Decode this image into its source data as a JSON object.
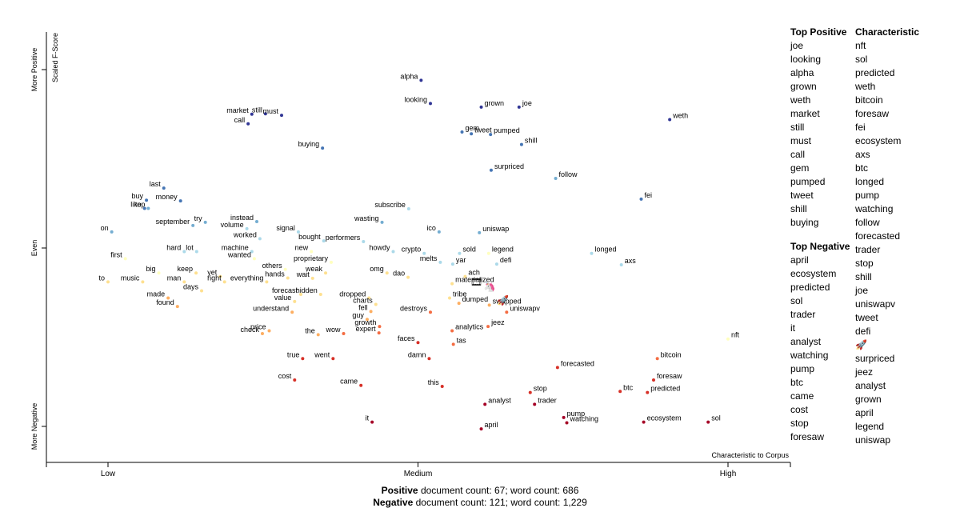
{
  "chart_data": {
    "type": "scatter",
    "y_axis_title": "Scaled F-Score",
    "y_tick_labels": [
      "More Positive",
      "Even",
      "More Negative"
    ],
    "x_axis_title": "Characteristic to Corpus",
    "x_tick_labels": [
      "Low",
      "Medium",
      "High"
    ],
    "xlim": [
      0,
      1
    ],
    "ylim": [
      0,
      1
    ],
    "color_scale": {
      "positive": "#313695",
      "mid_positive": "#74add1",
      "neutral_positive": "#abd9e9",
      "neutral": "#ffffbf",
      "neutral_negative": "#fdae61",
      "negative": "#d73027",
      "most_negative": "#a50026"
    },
    "points": [
      {
        "term": "alpha",
        "x": 0.505,
        "y": 0.97,
        "c": "#313695"
      },
      {
        "term": "looking",
        "x": 0.52,
        "y": 0.905,
        "c": "#313695"
      },
      {
        "term": "grown",
        "x": 0.602,
        "y": 0.895,
        "c": "#313695"
      },
      {
        "term": "joe",
        "x": 0.663,
        "y": 0.895,
        "c": "#313695"
      },
      {
        "term": "market",
        "x": 0.232,
        "y": 0.875,
        "c": "#313695"
      },
      {
        "term": "still",
        "x": 0.254,
        "y": 0.876,
        "c": "#313695"
      },
      {
        "term": "must",
        "x": 0.28,
        "y": 0.872,
        "c": "#313695"
      },
      {
        "term": "call",
        "x": 0.226,
        "y": 0.848,
        "c": "#313695"
      },
      {
        "term": "weth",
        "x": 0.906,
        "y": 0.86,
        "c": "#313695"
      },
      {
        "term": "gem",
        "x": 0.571,
        "y": 0.825,
        "c": "#4575b4"
      },
      {
        "term": "tweet",
        "x": 0.586,
        "y": 0.82,
        "c": "#4575b4"
      },
      {
        "term": "pumped",
        "x": 0.617,
        "y": 0.818,
        "c": "#4575b4"
      },
      {
        "term": "shill",
        "x": 0.667,
        "y": 0.79,
        "c": "#4575b4"
      },
      {
        "term": "buying",
        "x": 0.346,
        "y": 0.78,
        "c": "#4575b4"
      },
      {
        "term": "surpriced",
        "x": 0.618,
        "y": 0.718,
        "c": "#4575b4"
      },
      {
        "term": "follow",
        "x": 0.722,
        "y": 0.695,
        "c": "#74add1"
      },
      {
        "term": "last",
        "x": 0.09,
        "y": 0.668,
        "c": "#4575b4"
      },
      {
        "term": "money",
        "x": 0.117,
        "y": 0.632,
        "c": "#4575b4"
      },
      {
        "term": "buy",
        "x": 0.062,
        "y": 0.634,
        "c": "#4575b4"
      },
      {
        "term": "like",
        "x": 0.059,
        "y": 0.611,
        "c": "#4575b4"
      },
      {
        "term": "top",
        "x": 0.065,
        "y": 0.611,
        "c": "#74add1"
      },
      {
        "term": "fei",
        "x": 0.86,
        "y": 0.637,
        "c": "#4575b4"
      },
      {
        "term": "subscribe",
        "x": 0.485,
        "y": 0.61,
        "c": "#abd9e9"
      },
      {
        "term": "try",
        "x": 0.157,
        "y": 0.572,
        "c": "#74add1"
      },
      {
        "term": "instead",
        "x": 0.24,
        "y": 0.574,
        "c": "#74add1"
      },
      {
        "term": "wasting",
        "x": 0.442,
        "y": 0.572,
        "c": "#74add1"
      },
      {
        "term": "on",
        "x": 0.006,
        "y": 0.545,
        "c": "#74add1"
      },
      {
        "term": "september",
        "x": 0.137,
        "y": 0.563,
        "c": "#74add1"
      },
      {
        "term": "volume",
        "x": 0.224,
        "y": 0.554,
        "c": "#abd9e9"
      },
      {
        "term": "signal",
        "x": 0.307,
        "y": 0.545,
        "c": "#abd9e9"
      },
      {
        "term": "ico",
        "x": 0.534,
        "y": 0.545,
        "c": "#74add1"
      },
      {
        "term": "uniswap",
        "x": 0.599,
        "y": 0.543,
        "c": "#74add1"
      },
      {
        "term": "worked",
        "x": 0.245,
        "y": 0.526,
        "c": "#abd9e9"
      },
      {
        "term": "bought",
        "x": 0.348,
        "y": 0.52,
        "c": "#abd9e9"
      },
      {
        "term": "performers",
        "x": 0.412,
        "y": 0.518,
        "c": "#abd9e9"
      },
      {
        "term": "hard",
        "x": 0.123,
        "y": 0.49,
        "c": "#abd9e9"
      },
      {
        "term": "lot",
        "x": 0.143,
        "y": 0.49,
        "c": "#abd9e9"
      },
      {
        "term": "machine",
        "x": 0.232,
        "y": 0.49,
        "c": "#abd9e9"
      },
      {
        "term": "new",
        "x": 0.328,
        "y": 0.49,
        "c": "#ffffbf"
      },
      {
        "term": "howdy",
        "x": 0.46,
        "y": 0.49,
        "c": "#abd9e9"
      },
      {
        "term": "crypto",
        "x": 0.51,
        "y": 0.485,
        "c": "#abd9e9"
      },
      {
        "term": "sold",
        "x": 0.567,
        "y": 0.485,
        "c": "#abd9e9"
      },
      {
        "term": "legend",
        "x": 0.614,
        "y": 0.485,
        "c": "#ffffbf"
      },
      {
        "term": "longed",
        "x": 0.78,
        "y": 0.485,
        "c": "#abd9e9"
      },
      {
        "term": "first",
        "x": 0.028,
        "y": 0.47,
        "c": "#ffffbf"
      },
      {
        "term": "wanted",
        "x": 0.236,
        "y": 0.47,
        "c": "#ffffbf"
      },
      {
        "term": "proprietary",
        "x": 0.36,
        "y": 0.46,
        "c": "#ffffbf"
      },
      {
        "term": "melts",
        "x": 0.536,
        "y": 0.46,
        "c": "#abd9e9"
      },
      {
        "term": "yar",
        "x": 0.556,
        "y": 0.455,
        "c": "#abd9e9"
      },
      {
        "term": "defi",
        "x": 0.627,
        "y": 0.455,
        "c": "#abd9e9"
      },
      {
        "term": "axs",
        "x": 0.828,
        "y": 0.453,
        "c": "#abd9e9"
      },
      {
        "term": "big",
        "x": 0.082,
        "y": 0.43,
        "c": "#ffffbf"
      },
      {
        "term": "keep",
        "x": 0.142,
        "y": 0.43,
        "c": "#fee090"
      },
      {
        "term": "yet",
        "x": 0.181,
        "y": 0.42,
        "c": "#fee090"
      },
      {
        "term": "others",
        "x": 0.286,
        "y": 0.44,
        "c": "#ffffbf"
      },
      {
        "term": "weak",
        "x": 0.351,
        "y": 0.43,
        "c": "#fee090"
      },
      {
        "term": "omg",
        "x": 0.45,
        "y": 0.43,
        "c": "#fee090"
      },
      {
        "term": "ach",
        "x": 0.576,
        "y": 0.42,
        "c": "#fee090"
      },
      {
        "term": "dao",
        "x": 0.484,
        "y": 0.418,
        "c": "#fee090"
      },
      {
        "term": "hands",
        "x": 0.29,
        "y": 0.416,
        "c": "#fee090"
      },
      {
        "term": "man",
        "x": 0.123,
        "y": 0.405,
        "c": "#fee090"
      },
      {
        "term": "right",
        "x": 0.188,
        "y": 0.405,
        "c": "#fee090"
      },
      {
        "term": "everything",
        "x": 0.256,
        "y": 0.405,
        "c": "#fee090"
      },
      {
        "term": "wait",
        "x": 0.33,
        "y": 0.415,
        "c": "#fee090"
      },
      {
        "term": "materialized",
        "x": 0.555,
        "y": 0.4,
        "c": "#fee090"
      },
      {
        "term": "to",
        "x": 0.0,
        "y": 0.405,
        "c": "#fee090"
      },
      {
        "term": "music",
        "x": 0.056,
        "y": 0.405,
        "c": "#fee090"
      },
      {
        "term": "days",
        "x": 0.151,
        "y": 0.38,
        "c": "#fee090"
      },
      {
        "term": "forecast",
        "x": 0.311,
        "y": 0.37,
        "c": "#fee090"
      },
      {
        "term": "hidden",
        "x": 0.343,
        "y": 0.37,
        "c": "#fee090"
      },
      {
        "term": "made",
        "x": 0.097,
        "y": 0.36,
        "c": "#fdae61"
      },
      {
        "term": "value",
        "x": 0.301,
        "y": 0.35,
        "c": "#fee090"
      },
      {
        "term": "dropped",
        "x": 0.421,
        "y": 0.36,
        "c": "#fee090"
      },
      {
        "term": "tribe",
        "x": 0.551,
        "y": 0.36,
        "c": "#fee090"
      },
      {
        "term": "dumped",
        "x": 0.566,
        "y": 0.345,
        "c": "#fdae61"
      },
      {
        "term": "charts",
        "x": 0.432,
        "y": 0.342,
        "c": "#fee090"
      },
      {
        "term": "found",
        "x": 0.112,
        "y": 0.336,
        "c": "#fdae61"
      },
      {
        "term": "understand",
        "x": 0.297,
        "y": 0.32,
        "c": "#fdae61"
      },
      {
        "term": "fell",
        "x": 0.424,
        "y": 0.322,
        "c": "#fdae61"
      },
      {
        "term": "swapped",
        "x": 0.615,
        "y": 0.34,
        "c": "#fdae61"
      },
      {
        "term": "guy",
        "x": 0.418,
        "y": 0.3,
        "c": "#fdae61"
      },
      {
        "term": "uniswapv",
        "x": 0.643,
        "y": 0.32,
        "c": "#f46d43"
      },
      {
        "term": "destroys",
        "x": 0.52,
        "y": 0.32,
        "c": "#f46d43"
      },
      {
        "term": "price",
        "x": 0.26,
        "y": 0.268,
        "c": "#fdae61"
      },
      {
        "term": "growth",
        "x": 0.438,
        "y": 0.28,
        "c": "#f46d43"
      },
      {
        "term": "jeez",
        "x": 0.613,
        "y": 0.28,
        "c": "#f46d43"
      },
      {
        "term": "analytics",
        "x": 0.555,
        "y": 0.268,
        "c": "#f46d43"
      },
      {
        "term": "check",
        "x": 0.249,
        "y": 0.26,
        "c": "#fdae61"
      },
      {
        "term": "expert",
        "x": 0.437,
        "y": 0.262,
        "c": "#f46d43"
      },
      {
        "term": "the",
        "x": 0.339,
        "y": 0.257,
        "c": "#fdae61"
      },
      {
        "term": "wow",
        "x": 0.38,
        "y": 0.26,
        "c": "#f46d43"
      },
      {
        "term": "faces",
        "x": 0.5,
        "y": 0.235,
        "c": "#d73027"
      },
      {
        "term": "tas",
        "x": 0.557,
        "y": 0.23,
        "c": "#f46d43"
      },
      {
        "term": "bitcoin",
        "x": 0.886,
        "y": 0.19,
        "c": "#f46d43"
      },
      {
        "term": "true",
        "x": 0.314,
        "y": 0.19,
        "c": "#d73027"
      },
      {
        "term": "went",
        "x": 0.363,
        "y": 0.19,
        "c": "#d73027"
      },
      {
        "term": "damn",
        "x": 0.518,
        "y": 0.19,
        "c": "#d73027"
      },
      {
        "term": "nft",
        "x": 1.0,
        "y": 0.245,
        "c": "#ffffbf"
      },
      {
        "term": "forecasted",
        "x": 0.725,
        "y": 0.165,
        "c": "#d73027"
      },
      {
        "term": "cost",
        "x": 0.301,
        "y": 0.13,
        "c": "#d73027"
      },
      {
        "term": "foresaw",
        "x": 0.88,
        "y": 0.13,
        "c": "#d73027"
      },
      {
        "term": "came",
        "x": 0.408,
        "y": 0.115,
        "c": "#d73027"
      },
      {
        "term": "this",
        "x": 0.539,
        "y": 0.112,
        "c": "#d73027"
      },
      {
        "term": "stop",
        "x": 0.681,
        "y": 0.095,
        "c": "#d73027"
      },
      {
        "term": "btc",
        "x": 0.826,
        "y": 0.098,
        "c": "#d73027"
      },
      {
        "term": "predicted",
        "x": 0.87,
        "y": 0.095,
        "c": "#d73027"
      },
      {
        "term": "trader",
        "x": 0.688,
        "y": 0.062,
        "c": "#a50026"
      },
      {
        "term": "analyst",
        "x": 0.608,
        "y": 0.062,
        "c": "#a50026"
      },
      {
        "term": "pump",
        "x": 0.735,
        "y": 0.025,
        "c": "#a50026"
      },
      {
        "term": "it",
        "x": 0.426,
        "y": 0.012,
        "c": "#a50026"
      },
      {
        "term": "ecosystem",
        "x": 0.864,
        "y": 0.012,
        "c": "#a50026"
      },
      {
        "term": "sol",
        "x": 0.968,
        "y": 0.012,
        "c": "#a50026"
      },
      {
        "term": "watching",
        "x": 0.74,
        "y": 0.01,
        "c": "#a50026"
      },
      {
        "term": "april",
        "x": 0.602,
        "y": -0.007,
        "c": "#a50026"
      }
    ],
    "emojis": [
      {
        "glyph": "🎞",
        "x": 0.594,
        "y": 0.407
      },
      {
        "glyph": "🦄",
        "x": 0.616,
        "y": 0.393
      },
      {
        "glyph": "🚀",
        "x": 0.637,
        "y": 0.355
      }
    ]
  },
  "side": {
    "top_positive_title": "Top Positive",
    "top_positive": [
      "joe",
      "looking",
      "alpha",
      "grown",
      "weth",
      "market",
      "still",
      "must",
      "call",
      "gem",
      "pumped",
      "tweet",
      "shill",
      "buying"
    ],
    "top_negative_title": "Top Negative",
    "top_negative": [
      "april",
      "ecosystem",
      "predicted",
      "sol",
      "trader",
      "it",
      "analyst",
      "watching",
      "pump",
      "btc",
      "came",
      "cost",
      "stop",
      "foresaw"
    ],
    "characteristic_title": "Characteristic",
    "characteristic": [
      "nft",
      "sol",
      "predicted",
      "weth",
      "bitcoin",
      "foresaw",
      "fei",
      "ecosystem",
      "axs",
      "btc",
      "longed",
      "pump",
      "watching",
      "follow",
      "forecasted",
      "trader",
      "stop",
      "shill",
      "joe",
      "uniswapv",
      "tweet",
      "defi",
      "🚀",
      "surpriced",
      "jeez",
      "analyst",
      "grown",
      "april",
      "legend",
      "uniswap"
    ]
  },
  "footer": {
    "pos_label": "Positive",
    "pos_text": " document count: 67; word count: 686",
    "neg_label": "Negative",
    "neg_text": " document count: 121; word count: 1,229"
  }
}
